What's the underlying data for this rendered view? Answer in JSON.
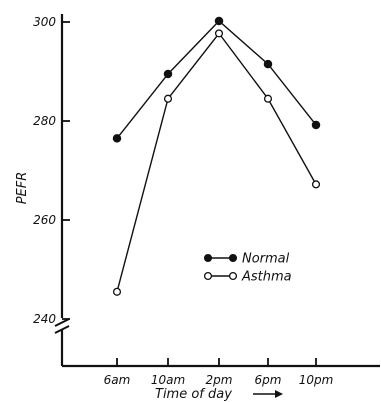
{
  "chart_data": {
    "type": "line",
    "title": "",
    "xlabel": "Time of day",
    "ylabel": "PEFR",
    "categories": [
      "6am",
      "10am",
      "2pm",
      "6pm",
      "10pm"
    ],
    "ylim": [
      240,
      300
    ],
    "yticks": [
      240,
      260,
      280,
      300
    ],
    "y_axis_break": true,
    "grid": false,
    "legend_position": "center-right",
    "series": [
      {
        "name": "Normal",
        "marker": "filled-circle",
        "values": [
          276.5,
          289.5,
          300.2,
          291.5,
          279.2
        ]
      },
      {
        "name": "Asthma",
        "marker": "open-circle",
        "values": [
          245.5,
          284.5,
          297.7,
          284.5,
          267.2
        ]
      }
    ],
    "colors": {
      "ink": "#111111",
      "open_marker_fill": "#ffffff"
    }
  }
}
